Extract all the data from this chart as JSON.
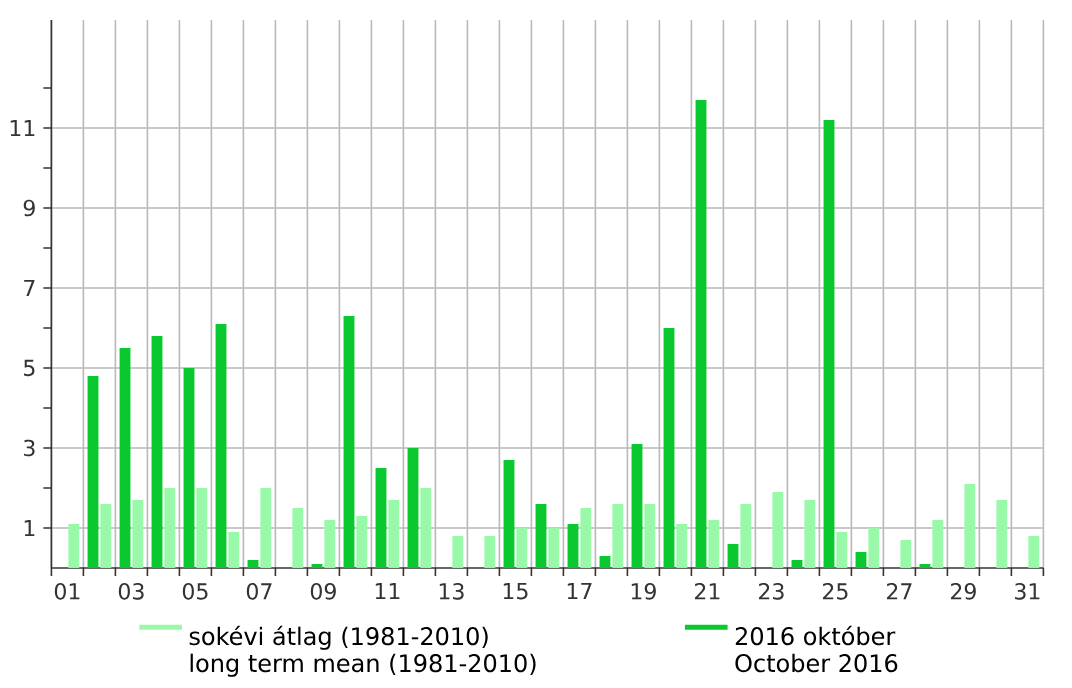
{
  "chart_data": {
    "type": "bar",
    "categories": [
      "01",
      null,
      "03",
      null,
      "05",
      null,
      "07",
      null,
      "09",
      null,
      "11",
      null,
      "13",
      null,
      "15",
      null,
      "17",
      null,
      "19",
      null,
      "21",
      null,
      "23",
      null,
      "25",
      null,
      "27",
      null,
      "29",
      null,
      "31"
    ],
    "series": [
      {
        "name": "2016 október\nOctober 2016",
        "color": "#09c92e",
        "values": [
          0,
          4.8,
          5.5,
          5.8,
          5.0,
          6.1,
          0.2,
          0,
          0.1,
          6.3,
          2.5,
          3.0,
          0,
          0,
          2.7,
          1.6,
          1.1,
          0.3,
          3.1,
          6.0,
          11.7,
          0.6,
          0,
          0.2,
          11.2,
          0.4,
          0,
          0.1,
          0,
          0,
          0
        ]
      },
      {
        "name": "sokévi átlag (1981-2010)\nlong term mean (1981-2010)",
        "color": "#99f9a9",
        "values": [
          1.1,
          1.6,
          1.7,
          2.0,
          2.0,
          0.9,
          2.0,
          1.5,
          1.2,
          1.3,
          1.7,
          2.0,
          0.8,
          0.8,
          1.0,
          1.0,
          1.5,
          1.6,
          1.6,
          1.1,
          1.2,
          1.6,
          1.9,
          1.7,
          0.9,
          1.0,
          0.7,
          1.2,
          2.1,
          1.7,
          0.8
        ]
      }
    ],
    "ylim": [
      0,
      13.7
    ],
    "yticks": [
      1,
      {
        "value": 2,
        "label": null
      },
      3,
      {
        "value": 4,
        "label": null
      },
      5,
      {
        "value": 6,
        "label": null
      },
      7,
      {
        "value": 8,
        "label": null
      },
      9,
      {
        "value": 10,
        "label": null
      },
      11,
      {
        "value": 12,
        "label": null
      }
    ],
    "grid": true,
    "legend": "bottom"
  }
}
